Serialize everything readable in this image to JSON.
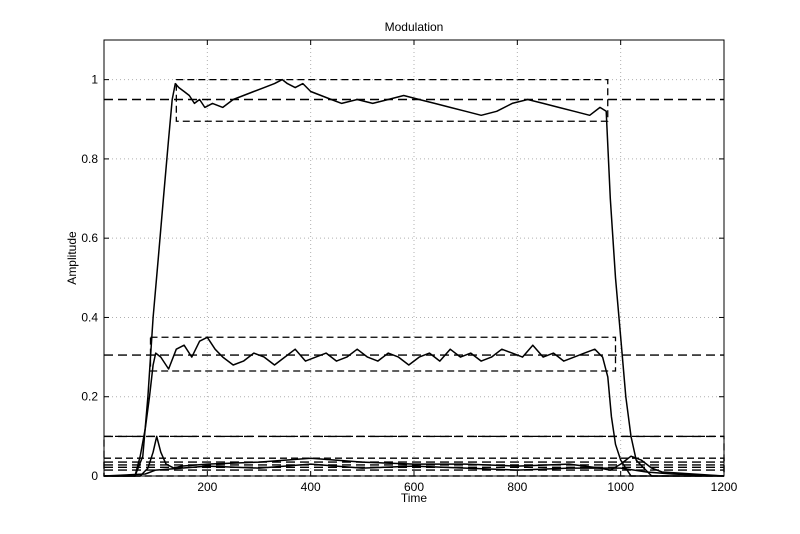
{
  "chart_data": {
    "type": "line",
    "title": "Modulation",
    "xlabel": "Time",
    "ylabel": "Amplitude",
    "xlim": [
      0,
      1200
    ],
    "ylim": [
      0,
      1.1
    ],
    "grid": true,
    "x_ticks": [
      200,
      400,
      600,
      800,
      1000,
      1200
    ],
    "x_tick_labels": [
      "200",
      "400",
      "600",
      "800",
      "1000",
      "1200"
    ],
    "y_ticks": [
      0,
      0.2,
      0.4,
      0.6,
      0.8,
      1
    ],
    "y_tick_labels": [
      "0",
      "0.2",
      "0.4",
      "0.6",
      "0.8",
      "1"
    ],
    "series": [
      {
        "style": "solid",
        "x": [
          0,
          60,
          75,
          85,
          95,
          105,
          115,
          125,
          132,
          138,
          145,
          155,
          165,
          175,
          185,
          195,
          210,
          230,
          250,
          270,
          290,
          310,
          330,
          345,
          355,
          370,
          385,
          400,
          420,
          440,
          460,
          490,
          520,
          550,
          580,
          610,
          640,
          670,
          700,
          730,
          760,
          790,
          820,
          850,
          880,
          910,
          940,
          960,
          972,
          980,
          990,
          1000,
          1010,
          1020,
          1030,
          1045,
          1060,
          1200
        ],
        "y": [
          0,
          0,
          0.05,
          0.2,
          0.4,
          0.55,
          0.7,
          0.85,
          0.95,
          0.99,
          0.98,
          0.97,
          0.96,
          0.94,
          0.95,
          0.93,
          0.94,
          0.93,
          0.95,
          0.96,
          0.97,
          0.98,
          0.99,
          1.0,
          0.99,
          0.98,
          0.99,
          0.97,
          0.96,
          0.95,
          0.94,
          0.95,
          0.94,
          0.95,
          0.96,
          0.95,
          0.94,
          0.93,
          0.92,
          0.91,
          0.92,
          0.94,
          0.95,
          0.94,
          0.93,
          0.92,
          0.91,
          0.93,
          0.92,
          0.7,
          0.5,
          0.35,
          0.2,
          0.1,
          0.04,
          0.02,
          0,
          0
        ]
      },
      {
        "style": "solid",
        "x": [
          0,
          60,
          70,
          80,
          88,
          95,
          100,
          110,
          125,
          140,
          155,
          170,
          185,
          200,
          215,
          230,
          250,
          270,
          290,
          310,
          330,
          350,
          370,
          390,
          410,
          430,
          450,
          470,
          490,
          510,
          530,
          550,
          570,
          590,
          610,
          630,
          650,
          670,
          690,
          710,
          730,
          750,
          770,
          790,
          810,
          830,
          850,
          870,
          890,
          910,
          930,
          950,
          965,
          975,
          982,
          990,
          1000,
          1010,
          1020,
          1200
        ],
        "y": [
          0,
          0,
          0.05,
          0.12,
          0.2,
          0.28,
          0.31,
          0.3,
          0.27,
          0.32,
          0.33,
          0.3,
          0.34,
          0.35,
          0.32,
          0.3,
          0.28,
          0.29,
          0.31,
          0.3,
          0.28,
          0.3,
          0.32,
          0.29,
          0.3,
          0.31,
          0.29,
          0.3,
          0.32,
          0.3,
          0.29,
          0.31,
          0.3,
          0.28,
          0.3,
          0.31,
          0.29,
          0.32,
          0.3,
          0.31,
          0.29,
          0.3,
          0.32,
          0.31,
          0.3,
          0.33,
          0.3,
          0.31,
          0.29,
          0.3,
          0.31,
          0.32,
          0.3,
          0.25,
          0.15,
          0.08,
          0.04,
          0.02,
          0,
          0
        ]
      },
      {
        "style": "solid",
        "x": [
          0,
          70,
          85,
          95,
          102,
          110,
          120,
          135,
          150,
          200,
          300,
          400,
          500,
          600,
          700,
          800,
          900,
          960,
          980,
          1000,
          1020,
          1040,
          1060,
          1080,
          1200
        ],
        "y": [
          0,
          0,
          0.02,
          0.06,
          0.1,
          0.06,
          0.03,
          0.02,
          0.025,
          0.03,
          0.035,
          0.045,
          0.035,
          0.03,
          0.03,
          0.025,
          0.03,
          0.02,
          0.015,
          0.03,
          0.05,
          0.04,
          0.02,
          0.01,
          0
        ]
      },
      {
        "style": "solid",
        "x": [
          0,
          80,
          100,
          150,
          200,
          300,
          400,
          500,
          600,
          700,
          800,
          900,
          1000,
          1050,
          1100,
          1200
        ],
        "y": [
          0,
          0.005,
          0.015,
          0.02,
          0.025,
          0.02,
          0.03,
          0.02,
          0.025,
          0.02,
          0.015,
          0.02,
          0.02,
          0.01,
          0.005,
          0
        ]
      },
      {
        "style": "dashed",
        "x": [
          0,
          1200
        ],
        "y": [
          0.95,
          0.95
        ]
      },
      {
        "style": "dashed",
        "x": [
          0,
          1200
        ],
        "y": [
          0.305,
          0.305
        ]
      },
      {
        "style": "dashed",
        "x": [
          0,
          1200
        ],
        "y": [
          0.1,
          0.1
        ]
      },
      {
        "style": "dashed",
        "x": [
          0,
          1200
        ],
        "y": [
          0.035,
          0.035
        ]
      },
      {
        "style": "dashed",
        "x": [
          0,
          1200
        ],
        "y": [
          0.028,
          0.028
        ]
      },
      {
        "style": "dashed",
        "x": [
          0,
          1200
        ],
        "y": [
          0.022,
          0.022
        ]
      },
      {
        "style": "dashed",
        "x": [
          0,
          1200
        ],
        "y": [
          0.015,
          0.015
        ]
      }
    ],
    "boxes": [
      {
        "x1": 140,
        "x2": 975,
        "y1": 0.895,
        "y2": 1.0
      },
      {
        "x1": 90,
        "x2": 990,
        "y1": 0.265,
        "y2": 0.35
      },
      {
        "x1": 0,
        "x2": 1200,
        "y1": 0.0,
        "y2": 0.1
      },
      {
        "x1": 0,
        "x2": 1200,
        "y1": 0.0,
        "y2": 0.045
      }
    ]
  }
}
